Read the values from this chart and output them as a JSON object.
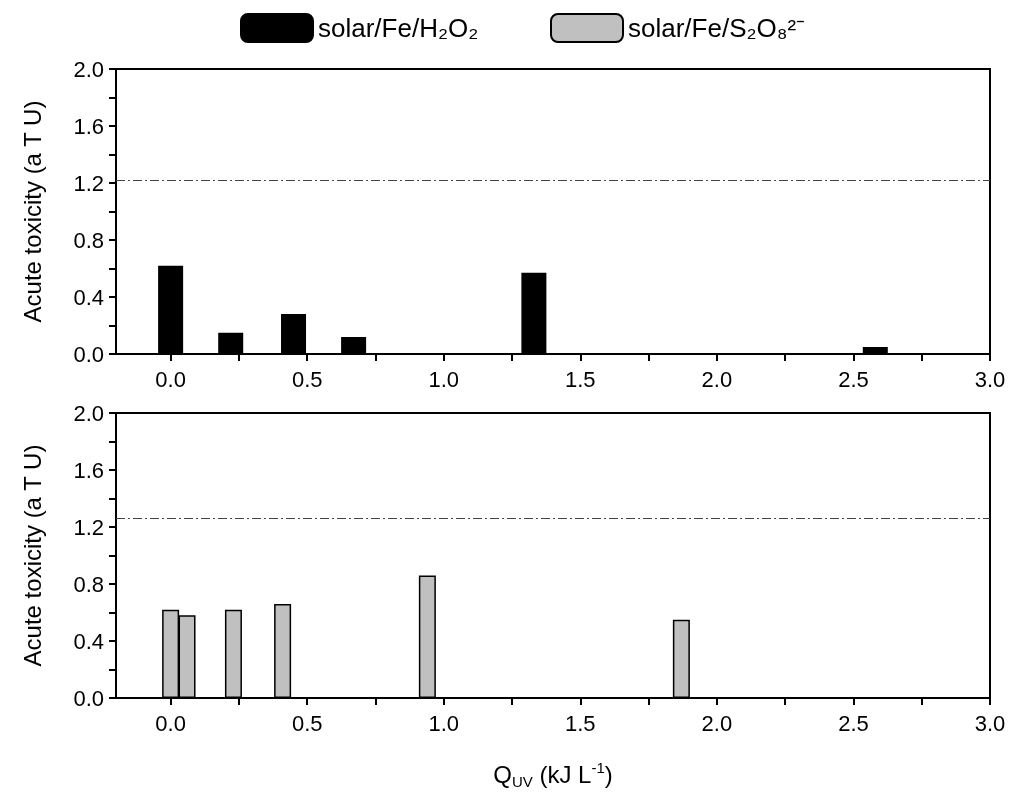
{
  "chart_data": [
    {
      "type": "bar",
      "ylabel": "Acute toxicity (a T U)",
      "x": [
        0.0,
        0.22,
        0.45,
        0.67,
        1.33,
        2.58
      ],
      "series": [
        {
          "name": "solar/Fe/H₂O₂",
          "color": "#000000",
          "values": [
            0.62,
            0.15,
            0.28,
            0.12,
            0.57,
            0.05
          ]
        }
      ],
      "xlim": [
        -0.2,
        3.0
      ],
      "xticks": [
        {
          "value": 0,
          "label": "0.0"
        },
        {
          "value": 0.25,
          "label": null
        },
        0.5,
        {
          "value": 0.75,
          "label": null
        },
        {
          "value": 1,
          "label": "1.0"
        },
        {
          "value": 1.25,
          "label": null
        },
        1.5,
        {
          "value": 1.75,
          "label": null
        },
        {
          "value": 2,
          "label": "2.0"
        },
        {
          "value": 2.25,
          "label": null
        },
        2.5,
        {
          "value": 2.75,
          "label": null
        },
        {
          "value": 3,
          "label": "3.0"
        }
      ],
      "ylim": [
        0,
        2.0
      ],
      "yticks": [
        {
          "value": 0,
          "label": "0.0"
        },
        {
          "value": 0.2,
          "label": null
        },
        0.4,
        {
          "value": 0.6,
          "label": null
        },
        0.8,
        {
          "value": 1,
          "label": null
        },
        1.2,
        {
          "value": 1.4,
          "label": null
        },
        1.6,
        {
          "value": 1.8,
          "label": null
        },
        {
          "value": 2,
          "label": "2.0"
        }
      ],
      "ref_lines": [
        {
          "axis": "y",
          "value": 1.22,
          "color": "#444444",
          "line_style": "dashed"
        }
      ],
      "grid": false,
      "legend": "top"
    },
    {
      "type": "bar",
      "ylabel": "Acute toxicity (a T U)",
      "xlabel": "Q$_{UV}$ (kJ L$^{-1}$)",
      "x": [
        0.0,
        0.06,
        0.23,
        0.41,
        0.94,
        1.87
      ],
      "series": [
        {
          "name": "solar/Fe/S₂O₈²⁻",
          "color": "#c0c0c0",
          "values": [
            0.62,
            0.58,
            0.62,
            0.66,
            0.86,
            0.55
          ]
        }
      ],
      "xlim": [
        -0.2,
        3.0
      ],
      "xticks": [
        {
          "value": 0,
          "label": "0.0"
        },
        {
          "value": 0.25,
          "label": null
        },
        0.5,
        {
          "value": 0.75,
          "label": null
        },
        {
          "value": 1,
          "label": "1.0"
        },
        {
          "value": 1.25,
          "label": null
        },
        1.5,
        {
          "value": 1.75,
          "label": null
        },
        {
          "value": 2,
          "label": "2.0"
        },
        {
          "value": 2.25,
          "label": null
        },
        2.5,
        {
          "value": 2.75,
          "label": null
        },
        {
          "value": 3,
          "label": "3.0"
        }
      ],
      "ylim": [
        0,
        2.0
      ],
      "yticks": [
        {
          "value": 0,
          "label": "0.0"
        },
        {
          "value": 0.2,
          "label": null
        },
        0.4,
        {
          "value": 0.6,
          "label": null
        },
        0.8,
        {
          "value": 1,
          "label": null
        },
        1.2,
        {
          "value": 1.4,
          "label": null
        },
        1.6,
        {
          "value": 1.8,
          "label": null
        },
        {
          "value": 2,
          "label": "2.0"
        }
      ],
      "ref_lines": [
        {
          "axis": "y",
          "value": 1.26,
          "color": "#444444",
          "line_style": "dashed"
        }
      ],
      "grid": false,
      "legend": "top"
    }
  ]
}
